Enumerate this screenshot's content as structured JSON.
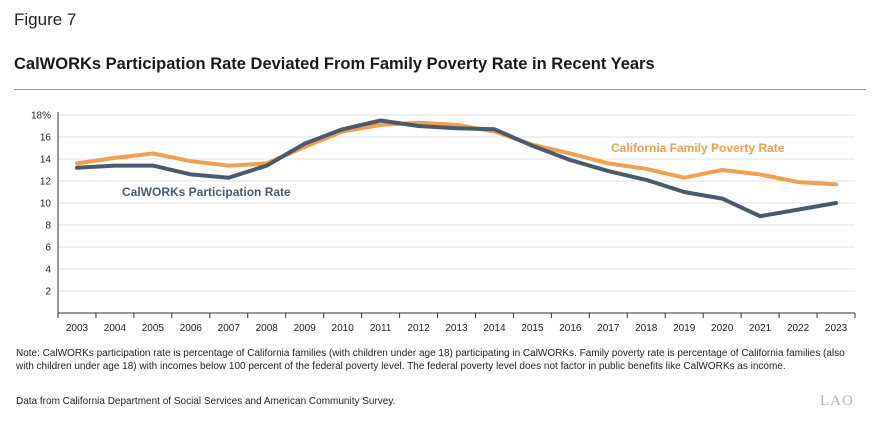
{
  "figure_label": "Figure 7",
  "title": "CalWORKs Participation Rate Deviated From Family Poverty Rate in Recent Years",
  "note": "Note: CalWORKs participation rate is percentage of California families (with children under age 18) participating in CalWORKs. Family poverty rate is percentage of California families (also with children under age 18) with incomes below 100 percent of the federal poverty level. The federal poverty level does not factor in public benefits like CalWORKs as income.",
  "source": "Data from California Department of Social Services and American Community Survey.",
  "logo": "LAO",
  "colors": {
    "calworks": "#4a5a6a",
    "poverty": "#f0a050",
    "grid": "#e2e2e2",
    "axis": "#333333"
  },
  "chart_data": {
    "type": "line",
    "title": "CalWORKs Participation Rate Deviated From Family Poverty Rate in Recent Years",
    "xlabel": "",
    "ylabel": "",
    "ylim": [
      0,
      18
    ],
    "yticks": [
      2,
      4,
      6,
      8,
      10,
      12,
      14,
      16,
      18
    ],
    "ytick_labels": [
      "2",
      "4",
      "6",
      "8",
      "10",
      "12",
      "14",
      "16",
      "18%"
    ],
    "x": [
      "2003",
      "2004",
      "2005",
      "2006",
      "2007",
      "2008",
      "2009",
      "2010",
      "2011",
      "2012",
      "2013",
      "2014",
      "2015",
      "2016",
      "2017",
      "2018",
      "2019",
      "2020",
      "2021",
      "2022",
      "2023"
    ],
    "grid": true,
    "series": [
      {
        "name": "CalWORKs Participation Rate",
        "label": "CalWORKs Participation Rate",
        "values": [
          13.2,
          13.4,
          13.4,
          12.6,
          12.3,
          13.4,
          15.4,
          16.7,
          17.5,
          17.0,
          16.8,
          16.7,
          15.2,
          13.9,
          12.9,
          12.1,
          11.0,
          10.4,
          8.8,
          9.4,
          10.0
        ]
      },
      {
        "name": "California Family Poverty Rate",
        "label": "California Family Poverty Rate",
        "values": [
          13.6,
          14.1,
          14.5,
          13.8,
          13.4,
          13.6,
          15.1,
          16.5,
          17.1,
          17.3,
          17.1,
          16.5,
          15.3,
          14.5,
          13.6,
          13.1,
          12.3,
          13.0,
          12.6,
          11.9,
          11.7
        ]
      }
    ]
  }
}
